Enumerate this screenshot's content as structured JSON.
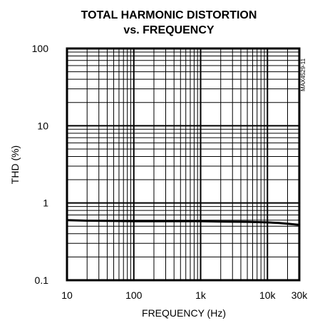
{
  "chart_data": {
    "type": "line",
    "title": "TOTAL HARMONIC DISTORTION",
    "subtitle": "vs. FREQUENCY",
    "xlabel": "FREQUENCY (Hz)",
    "ylabel": "THD (%)",
    "x_scale": "log",
    "y_scale": "log",
    "xlim": [
      10,
      30000
    ],
    "ylim": [
      0.1,
      100
    ],
    "x_ticks": [
      10,
      100,
      1000,
      10000,
      30000
    ],
    "x_tick_labels": [
      "10",
      "100",
      "1k",
      "10k",
      "30k"
    ],
    "y_ticks": [
      0.1,
      1,
      10,
      100
    ],
    "y_tick_labels": [
      "0.1",
      "1",
      "10",
      "100"
    ],
    "grid": true,
    "legend": "none",
    "annotation": "MAX4529-11",
    "series": [
      {
        "x": [
          10,
          20,
          50,
          100,
          200,
          500,
          1000,
          2000,
          5000,
          10000,
          15000,
          20000,
          30000
        ],
        "y": [
          0.6,
          0.59,
          0.585,
          0.58,
          0.58,
          0.58,
          0.58,
          0.575,
          0.57,
          0.56,
          0.55,
          0.54,
          0.52
        ]
      }
    ]
  }
}
